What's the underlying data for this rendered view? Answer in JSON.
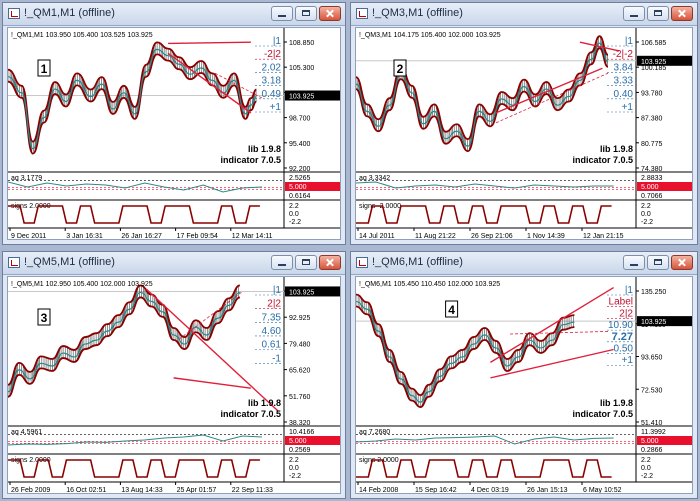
{
  "windows": [
    {
      "title": "!_QM1,M1 (offline)",
      "info": "!_QM1,M1  103.950 105.400 103.525 103.925",
      "marker": "1",
      "levels": [
        "|1",
        "-2|2",
        "2.02",
        "3.18",
        "0.49",
        "+1"
      ],
      "price_ticks": [
        "108.850",
        "105.300",
        "102.000",
        "98.700",
        "95.400",
        "92.200"
      ],
      "current_price": "103.925",
      "lib": "lib 1.9.8",
      "indicator": "indicator 7.0.5",
      "aq_label": "aq 3.1779",
      "aq_ticks": [
        "2.5265",
        "5.000",
        "0.6164"
      ],
      "signs_label": "signs 2.0000",
      "signs_ticks": [
        "2.2",
        "0.0",
        "-2.2"
      ],
      "x_labels": [
        "9 Dec 2011",
        "3 Jan 16:31",
        "26 Jan 16:27",
        "17 Feb 09:54",
        "12 Mar 14:11"
      ]
    },
    {
      "title": "!_QM3,M1 (offline)",
      "info": "!_QM3,M1  104.175 105.400 102.000 103.925",
      "marker": "2",
      "levels": [
        "|1",
        "-2|-2",
        "3.84",
        "3.33",
        "0.40",
        "+1"
      ],
      "price_ticks": [
        "106.585",
        "100.185",
        "93.780",
        "87.380",
        "80.775",
        "74.380"
      ],
      "current_price": "103.925",
      "lib": "lib 1.9.8",
      "indicator": "indicator 7.0.5",
      "aq_label": "aq 3.3342",
      "aq_ticks": [
        "2.8833",
        "5.000",
        "0.7066"
      ],
      "signs_label": "signs -2.0000",
      "signs_ticks": [
        "2.2",
        "0.0",
        "-2.2"
      ],
      "x_labels": [
        "14 Jul 2011",
        "11 Aug 21:22",
        "26 Sep 21:06",
        "1 Nov 14:39",
        "12 Jan 21:15"
      ]
    },
    {
      "title": "!_QM5,M1 (offline)",
      "info": "!_QM5,M1  102.950 105.400 102.000 103.925",
      "marker": "3",
      "levels": [
        "|1",
        "2|2",
        "7.35",
        "4.60",
        "0.61",
        "-1"
      ],
      "price_ticks": [
        "106.305",
        "92.925",
        "79.480",
        "65.620",
        "51.760",
        "38.320"
      ],
      "current_price": "103.925",
      "lib": "lib 1.9.8",
      "indicator": "indicator 7.0.5",
      "aq_label": "aq 4.5961",
      "aq_ticks": [
        "10.4166",
        "5.000",
        "0.2569"
      ],
      "signs_label": "signs 2.0000",
      "signs_ticks": [
        "2.2",
        "0.0",
        "-2.2"
      ],
      "x_labels": [
        "26 Feb 2009",
        "16 Oct 02:51",
        "13 Aug 14:33",
        "25 Apr 01:57",
        "22 Sep 11:33"
      ]
    },
    {
      "title": "!_QM6,M1 (offline)",
      "info": "!_QM6,M1  105.450 110.450 102.000 103.925",
      "marker": "4",
      "levels": [
        "|1",
        "Label",
        "2|2",
        "10.90",
        "7.27",
        "0.50",
        "+1"
      ],
      "price_ticks": [
        "135.250",
        "114.130",
        "93.650",
        "72.530",
        "51.410"
      ],
      "current_price": "103.925",
      "lib": "lib 1.9.8",
      "indicator": "indicator 7.0.5",
      "aq_label": "aq 7.2680",
      "aq_ticks": [
        "11.3992",
        "5.000",
        "0.2866"
      ],
      "signs_label": "signs 2.0000",
      "signs_ticks": [
        "2.2",
        "0.0",
        "-2.2"
      ],
      "x_labels": [
        "14 Feb 2008",
        "15 Sep 16:42",
        "4 Dec 03:19",
        "26 Jan 15:13",
        "6 May 10:52"
      ]
    }
  ],
  "colors": {
    "price_line": "#8b0000",
    "teal_line": "#2a8a8a",
    "trendline": "#e0203a",
    "level_blue": "#2a6ea8",
    "level_red": "#c01030",
    "price_box": "#000000",
    "aq_box": "#e8102c",
    "signs_line": "#8b0000",
    "window_bg": "#dfe8f4"
  },
  "icons": [
    "chart-window-icon",
    "minimize-icon",
    "maximize-icon",
    "close-icon"
  ]
}
